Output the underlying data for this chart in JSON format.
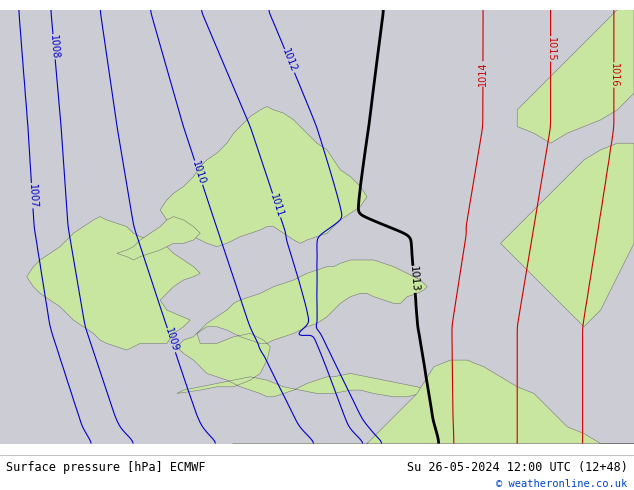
{
  "title_left": "Surface pressure [hPa] ECMWF",
  "title_right": "Su 26-05-2024 12:00 UTC (12+48)",
  "copyright": "© weatheronline.co.uk",
  "background_color": "#ccccd4",
  "land_color": "#c8e6a0",
  "sea_color": "#ccccd4",
  "blue_isobar_color": "#0000cc",
  "red_isobar_color": "#cc0000",
  "black_isobar_color": "#000000",
  "figsize": [
    6.34,
    4.9
  ],
  "dpi": 100,
  "xlim": [
    -11.0,
    8.0
  ],
  "ylim": [
    48.5,
    61.5
  ]
}
